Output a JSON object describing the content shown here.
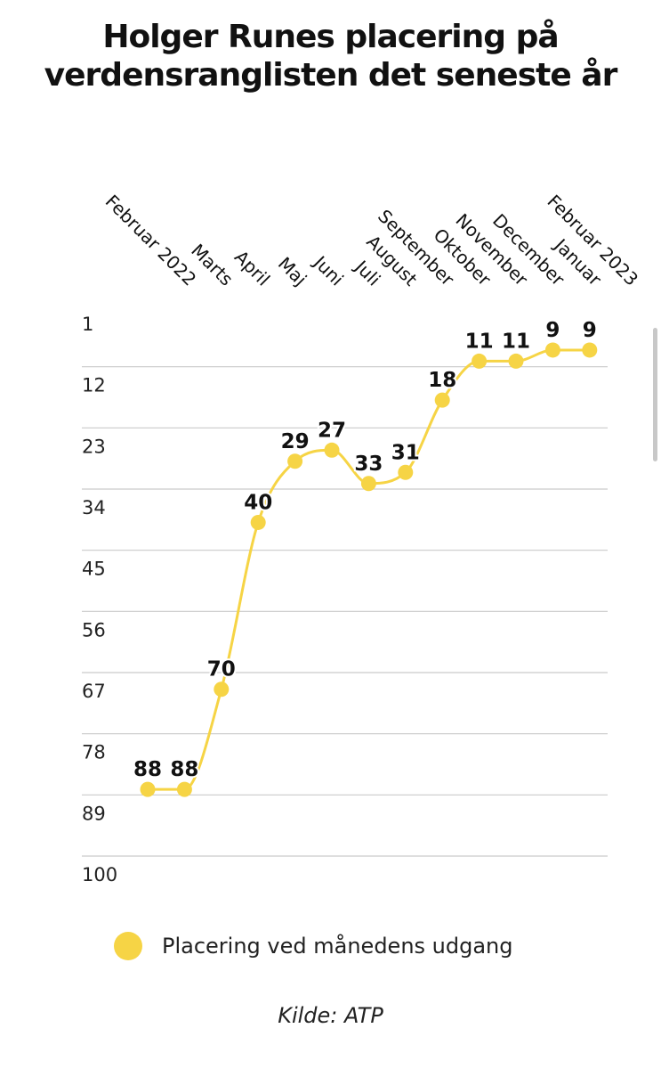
{
  "colors": {
    "series": "#F6D445",
    "grid": "#c9c9c9",
    "text": "#111111"
  },
  "chart_data": {
    "type": "line",
    "title": "Holger Runes placering på verdensranglisten det seneste år",
    "categories": [
      "Februar 2022",
      "Marts",
      "April",
      "Maj",
      "Juni",
      "Juli",
      "August",
      "September",
      "Oktober",
      "November",
      "December",
      "Januar",
      "Februar 2023"
    ],
    "series": [
      {
        "name": "Placering ved månedens udgang",
        "values": [
          88,
          88,
          70,
          40,
          29,
          27,
          33,
          31,
          18,
          11,
          11,
          9,
          9
        ]
      }
    ],
    "y_ticks": [
      1,
      12,
      23,
      34,
      45,
      56,
      67,
      78,
      89,
      100
    ],
    "ylim": [
      1,
      100
    ],
    "y_inverted": true,
    "xlabel": "",
    "ylabel": "",
    "legend_position": "bottom",
    "source": "Kilde: ATP"
  }
}
